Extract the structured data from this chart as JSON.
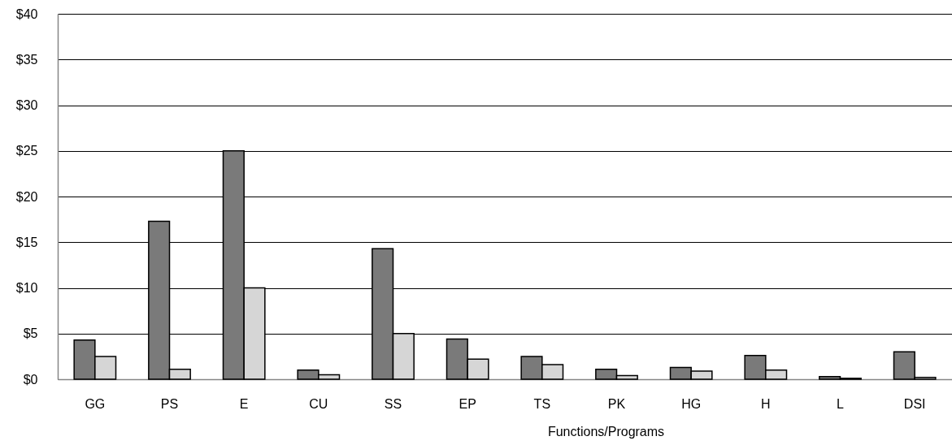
{
  "chart_data": {
    "type": "bar",
    "xlabel": "Functions/Programs",
    "categories": [
      "GG",
      "PS",
      "E",
      "CU",
      "SS",
      "EP",
      "TS",
      "PK",
      "HG",
      "H",
      "L",
      "DSI"
    ],
    "series": [
      {
        "color": "#7a7a7a",
        "values": [
          4.3,
          17.3,
          25,
          1.0,
          14.3,
          4.4,
          2.5,
          1.1,
          1.3,
          2.6,
          0.3,
          3.0
        ]
      },
      {
        "color": "#d6d6d6",
        "values": [
          2.5,
          1.1,
          10,
          0.5,
          5.0,
          2.2,
          1.6,
          0.4,
          0.9,
          1.0,
          0.1,
          0.2
        ]
      }
    ],
    "ylim": [
      0,
      40
    ],
    "yticks": [
      {
        "value": 0,
        "label": "$0"
      },
      {
        "value": 5,
        "label": "$5"
      },
      {
        "value": 10,
        "label": "$10"
      },
      {
        "value": 15,
        "label": "$15"
      },
      {
        "value": 20,
        "label": "$20"
      },
      {
        "value": 25,
        "label": "$25"
      },
      {
        "value": 30,
        "label": "$30"
      },
      {
        "value": 35,
        "label": "$35"
      },
      {
        "value": 40,
        "label": "$40"
      }
    ],
    "grid": "y"
  }
}
